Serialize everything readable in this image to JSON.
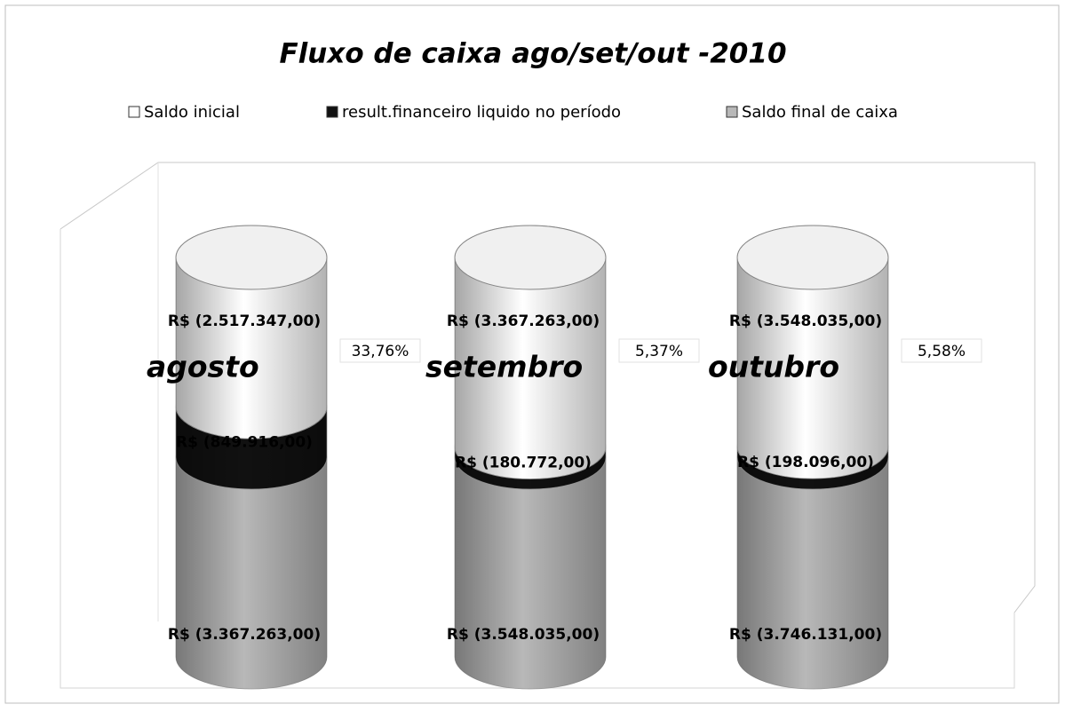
{
  "chart_data": {
    "type": "bar",
    "stacked": "percent",
    "three_d": "cylinder",
    "title": "Fluxo de caixa ago/set/out -2010",
    "categories": [
      "agosto",
      "setembro",
      "outubro"
    ],
    "series": [
      {
        "name": "Saldo final de caixa",
        "color": "#b8b8b8",
        "values": [
          3367263,
          3548035,
          3746131
        ],
        "value_labels": [
          "R$ (3.367.263,00)",
          "R$ (3.548.035,00)",
          "R$ (3.746.131,00)"
        ]
      },
      {
        "name": "result.financeiro liquido no período",
        "color": "#111111",
        "values": [
          849916,
          180772,
          198096
        ],
        "value_labels": [
          "R$ (849.916,00)",
          "R$ (180.772,00)",
          "R$ (198.096,00)"
        ]
      },
      {
        "name": "Saldo inicial",
        "color": "#ffffff",
        "values": [
          2517347,
          3367263,
          3548035
        ],
        "value_labels": [
          "R$ (2.517.347,00)",
          "R$ (3.367.263,00)",
          "R$ (3.548.035,00)"
        ]
      }
    ],
    "legend_order": [
      2,
      1,
      0
    ],
    "annotations": [
      "33,76%",
      "5,37%",
      "5,58%"
    ]
  }
}
